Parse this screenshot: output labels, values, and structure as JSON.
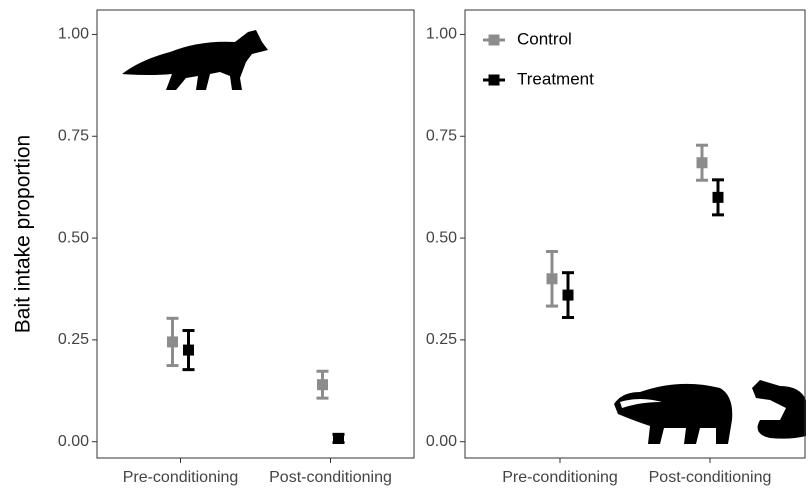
{
  "chart_data": [
    {
      "type": "errorpoint",
      "ylabel": "Bait intake proportion",
      "categories": [
        "Pre-conditioning",
        "Post-conditioning"
      ],
      "series": [
        {
          "name": "Control",
          "color": "#8c8c8c",
          "values": [
            0.245,
            0.14
          ],
          "errors": [
            0.058,
            0.033
          ]
        },
        {
          "name": "Treatment",
          "color": "#000000",
          "values": [
            0.225,
            0.008
          ],
          "errors": [
            0.048,
            0.01
          ]
        }
      ],
      "ylim": [
        -0.04,
        1.06
      ],
      "yticks": [
        {
          "value": 0,
          "label": "0.00"
        },
        0.25,
        {
          "value": 0.5,
          "label": "0.50"
        },
        0.75,
        {
          "value": 1,
          "label": "1.00"
        }
      ]
    },
    {
      "type": "errorpoint",
      "legend": "top-left",
      "categories": [
        "Pre-conditioning",
        "Post-conditioning"
      ],
      "series": [
        {
          "name": "Control",
          "color": "#8c8c8c",
          "values": [
            0.4,
            0.685
          ],
          "errors": [
            0.067,
            0.043
          ]
        },
        {
          "name": "Treatment",
          "color": "#000000",
          "values": [
            0.36,
            0.6
          ],
          "errors": [
            0.055,
            0.043
          ]
        }
      ],
      "ylim": [
        -0.04,
        1.06
      ],
      "yticks": [
        {
          "value": 0,
          "label": "0.00"
        },
        0.25,
        {
          "value": 0.5,
          "label": "0.50"
        },
        0.75,
        {
          "value": 1,
          "label": "1.00"
        }
      ]
    }
  ]
}
